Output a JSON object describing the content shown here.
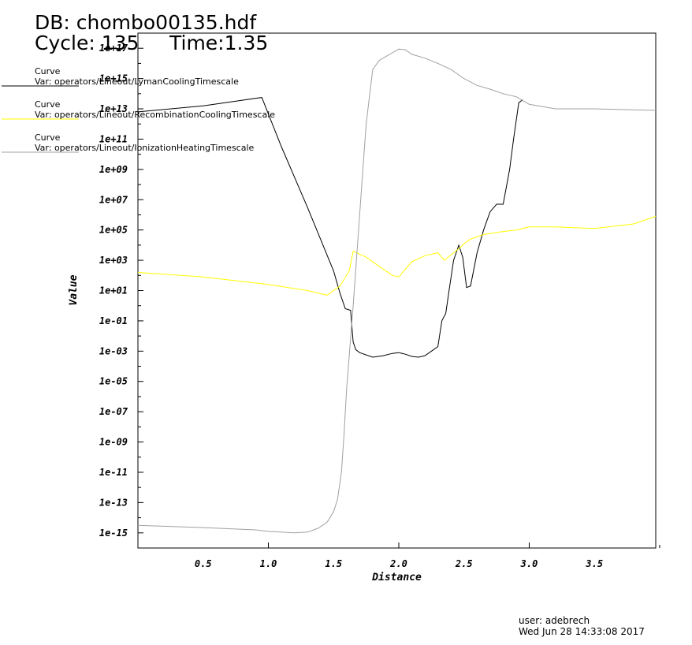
{
  "header": {
    "db_label": "DB: chombo00135.hdf",
    "cycle_label": "Cycle: 135",
    "time_label": "Time:1.35"
  },
  "chart_data": {
    "type": "line",
    "xlabel": "Distance",
    "ylabel": "Value",
    "xlim": [
      0.0,
      3.97
    ],
    "ylim_log10": [
      -16,
      18
    ],
    "yscale": "log",
    "x_ticks": [
      0.5,
      1.0,
      1.5,
      2.0,
      2.5,
      3.0,
      3.5
    ],
    "x_tick_labels": [
      "0.5",
      "1.0",
      "1.5",
      "2.0",
      "2.5",
      "3.0",
      "3.5"
    ],
    "y_ticks_log10": [
      -15,
      -13,
      -11,
      -9,
      -7,
      -5,
      -3,
      -1,
      1,
      3,
      5,
      7,
      9,
      11,
      13,
      15,
      17
    ],
    "y_tick_labels": [
      "1e-15",
      "1e-13",
      "1e-11",
      "1e-09",
      "1e-07",
      "1e-05",
      "1e-03",
      "1e-01",
      "1e+01",
      "1e+03",
      "1e+05",
      "1e+07",
      "1e+09",
      "1e+11",
      "1e+13",
      "1e+15",
      "1e+17"
    ],
    "series": [
      {
        "legend_title": "Curve",
        "name": "Var: operators/Lineout/LymanCoolingTimescale",
        "color": "#000000",
        "x": [
          0.0,
          0.5,
          0.95,
          1.1,
          1.3,
          1.5,
          1.55,
          1.59,
          1.63,
          1.65,
          1.67,
          1.7,
          1.8,
          1.88,
          1.95,
          2.0,
          2.05,
          2.1,
          2.15,
          2.2,
          2.25,
          2.3,
          2.33,
          2.36,
          2.38,
          2.42,
          2.46,
          2.49,
          2.52,
          2.55,
          2.6,
          2.65,
          2.7,
          2.75,
          2.8,
          2.85,
          2.88,
          2.92,
          2.95
        ],
        "y_log10": [
          12.8,
          13.2,
          13.75,
          10.5,
          6.5,
          2.3,
          0.8,
          -0.2,
          -0.3,
          -2.4,
          -2.9,
          -3.1,
          -3.4,
          -3.3,
          -3.15,
          -3.1,
          -3.2,
          -3.35,
          -3.4,
          -3.3,
          -3.0,
          -2.7,
          -1.0,
          -0.5,
          0.7,
          3.0,
          4.0,
          3.2,
          1.2,
          1.3,
          3.5,
          5.0,
          6.2,
          6.7,
          6.7,
          9.0,
          11.0,
          13.4,
          13.6
        ]
      },
      {
        "legend_title": "Curve",
        "name": "Var: operators/Lineout/RecombinationCoolingTimescale",
        "color": "#ffff00",
        "x": [
          0.0,
          0.5,
          1.0,
          1.3,
          1.45,
          1.55,
          1.62,
          1.65,
          1.75,
          1.85,
          1.95,
          2.0,
          2.1,
          2.2,
          2.3,
          2.35,
          2.42,
          2.48,
          2.5,
          2.55,
          2.65,
          2.8,
          2.9,
          3.0,
          3.2,
          3.5,
          3.8,
          3.97
        ],
        "y_log10": [
          2.2,
          1.9,
          1.4,
          1.0,
          0.7,
          1.3,
          2.3,
          3.6,
          3.2,
          2.6,
          2.0,
          1.9,
          2.9,
          3.3,
          3.5,
          3.0,
          3.5,
          3.9,
          4.1,
          4.4,
          4.7,
          4.9,
          5.0,
          5.2,
          5.2,
          5.1,
          5.4,
          5.9
        ]
      },
      {
        "legend_title": "Curve",
        "name": "Var: operators/Lineout/IonizationHeatingTimescale",
        "color": "#a0a0a0",
        "x": [
          0.0,
          0.5,
          0.9,
          1.0,
          1.2,
          1.3,
          1.38,
          1.45,
          1.5,
          1.53,
          1.56,
          1.58,
          1.6,
          1.65,
          1.7,
          1.75,
          1.8,
          1.85,
          1.9,
          1.95,
          2.0,
          2.05,
          2.1,
          2.2,
          2.3,
          2.4,
          2.5,
          2.6,
          2.7,
          2.8,
          2.9,
          3.0,
          3.2,
          3.5,
          3.97
        ],
        "y_log10": [
          -14.5,
          -14.65,
          -14.8,
          -14.9,
          -15.0,
          -14.95,
          -14.7,
          -14.3,
          -13.6,
          -12.8,
          -11.0,
          -8.5,
          -5.5,
          0.0,
          6.0,
          12.0,
          15.6,
          16.2,
          16.45,
          16.7,
          16.95,
          16.9,
          16.6,
          16.35,
          16.0,
          15.6,
          15.0,
          14.55,
          14.3,
          14.0,
          13.8,
          13.3,
          13.0,
          13.0,
          12.9
        ]
      }
    ]
  },
  "footer": {
    "user_label": "user: adebrech",
    "timestamp": "Wed Jun 28 14:33:08 2017"
  }
}
